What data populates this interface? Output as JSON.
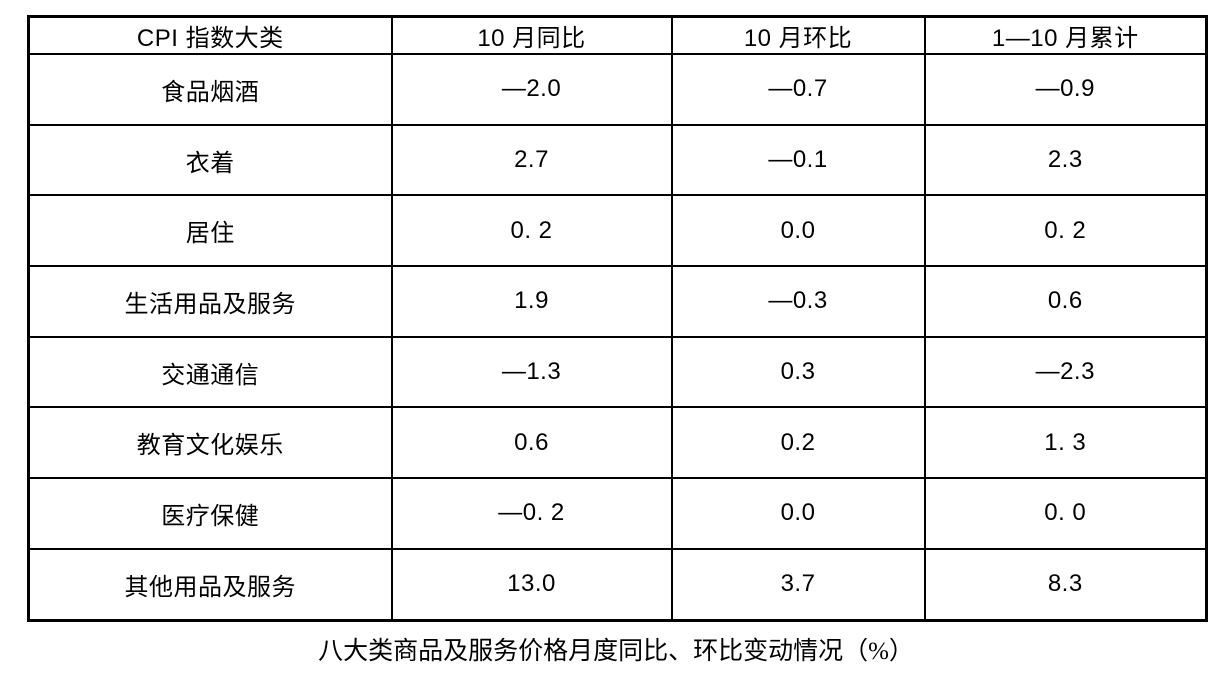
{
  "table": {
    "headers": [
      "CPI 指数大类",
      "10 月同比",
      "10 月环比",
      "1—10 月累计"
    ],
    "rows": [
      [
        "食品烟酒",
        "—2.0",
        "—0.7",
        "—0.9"
      ],
      [
        "衣着",
        "2.7",
        "—0.1",
        "2.3"
      ],
      [
        "居住",
        "0. 2",
        "0.0",
        "0. 2"
      ],
      [
        "生活用品及服务",
        "1.9",
        "—0.3",
        "0.6"
      ],
      [
        "交通通信",
        "—1.3",
        "0.3",
        "—2.3"
      ],
      [
        "教育文化娱乐",
        "0.6",
        "0.2",
        "1. 3"
      ],
      [
        "医疗保健",
        "—0. 2",
        "0.0",
        "0. 0"
      ],
      [
        "其他用品及服务",
        "13.0",
        "3.7",
        "8.3"
      ]
    ]
  },
  "caption": "八大类商品及服务价格月度同比、环比变动情况（%）",
  "chart_data": {
    "type": "table",
    "title": "八大类商品及服务价格月度同比、环比变动情况（%）",
    "columns": [
      "CPI 指数大类",
      "10 月同比",
      "10 月环比",
      "1—10 月累计"
    ],
    "categories": [
      "食品烟酒",
      "衣着",
      "居住",
      "生活用品及服务",
      "交通通信",
      "教育文化娱乐",
      "医疗保健",
      "其他用品及服务"
    ],
    "series": [
      {
        "name": "10 月同比",
        "values": [
          -2.0,
          2.7,
          0.2,
          1.9,
          -1.3,
          0.6,
          -0.2,
          13.0
        ]
      },
      {
        "name": "10 月环比",
        "values": [
          -0.7,
          -0.1,
          0.0,
          -0.3,
          0.3,
          0.2,
          0.0,
          3.7
        ]
      },
      {
        "name": "1—10 月累计",
        "values": [
          -0.9,
          2.3,
          0.2,
          0.6,
          -2.3,
          1.3,
          0.0,
          8.3
        ]
      }
    ]
  }
}
